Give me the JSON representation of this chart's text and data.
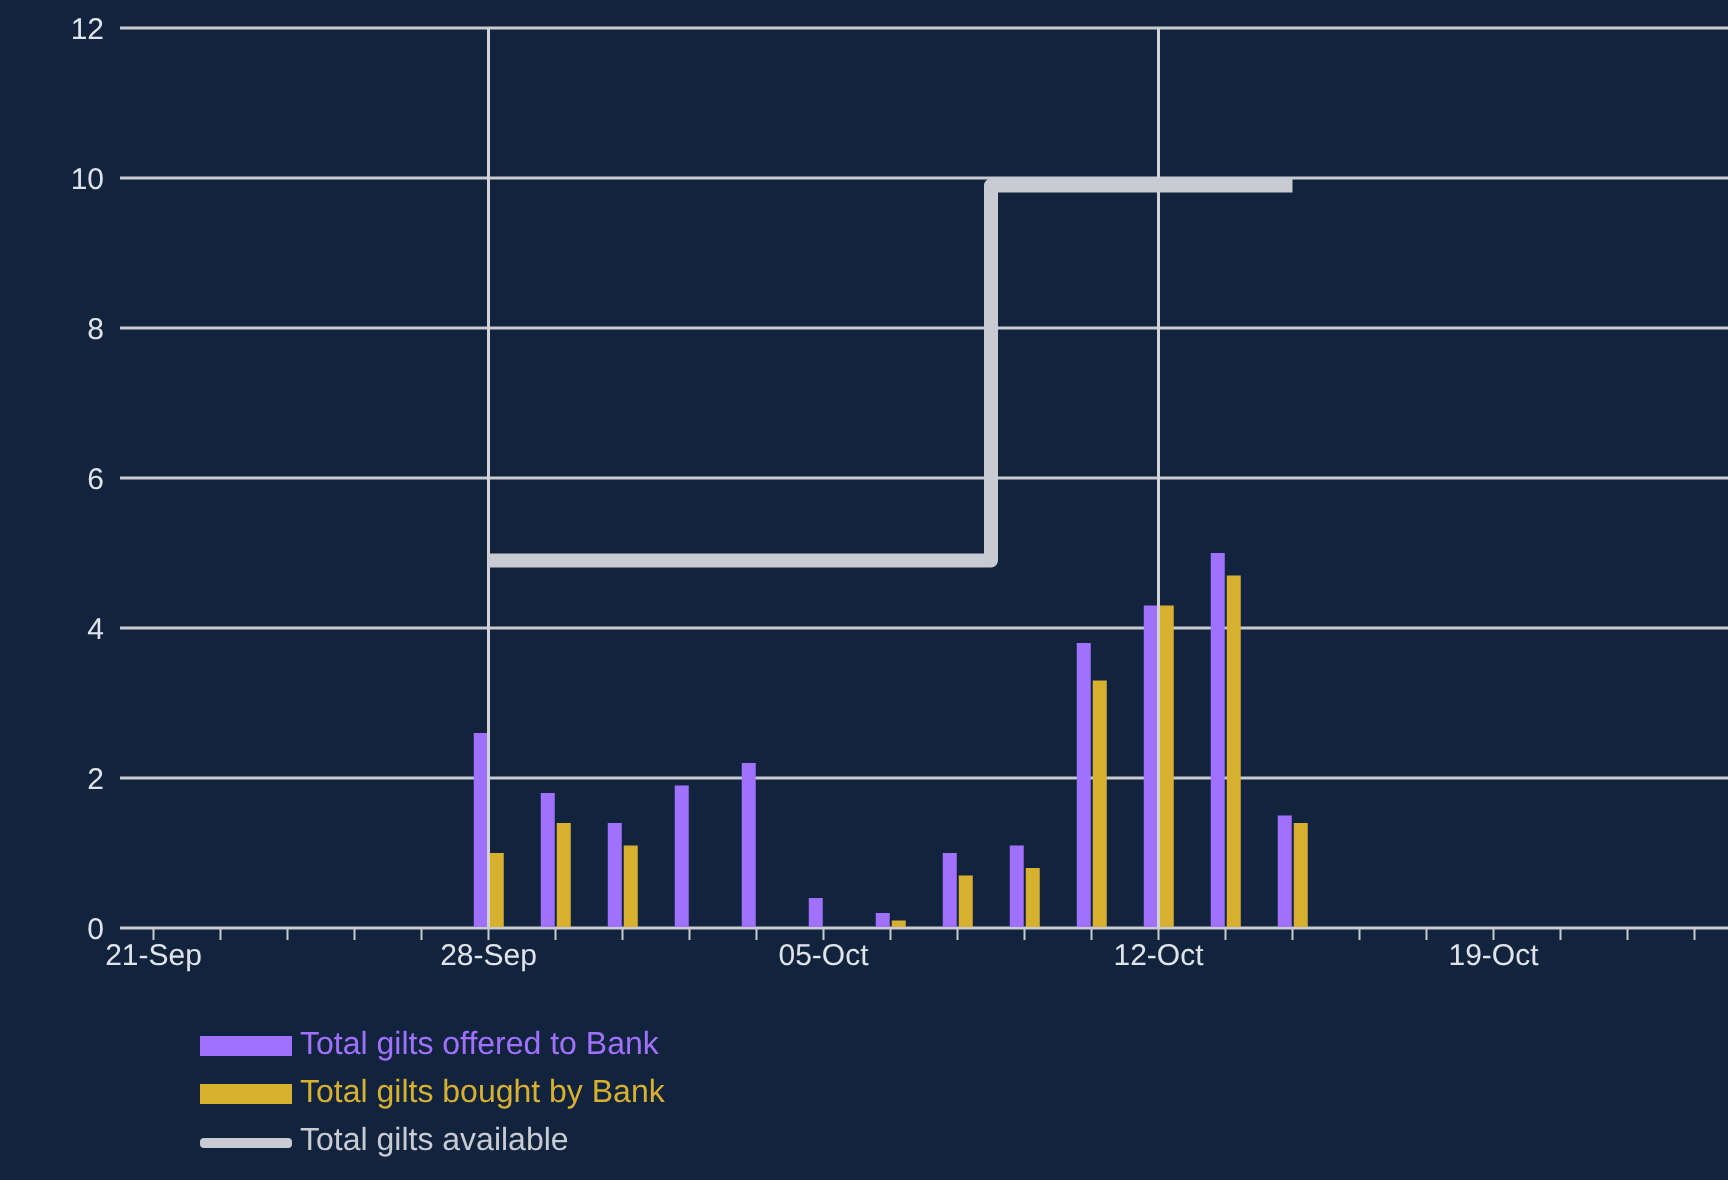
{
  "chart_data": {
    "type": "bar",
    "categories": [
      "21-Sep",
      null,
      null,
      null,
      null,
      "28-Sep",
      null,
      null,
      null,
      null,
      "05-Oct",
      null,
      null,
      null,
      null,
      "12-Oct",
      null,
      null,
      null,
      null,
      "19-Oct",
      null,
      null,
      null
    ],
    "series": [
      {
        "name": "Total gilts offered to Bank",
        "color": "#a070ff",
        "values": [
          null,
          null,
          null,
          null,
          null,
          2.6,
          1.8,
          1.4,
          1.9,
          2.2,
          0.4,
          0.2,
          1.0,
          1.1,
          3.8,
          4.3,
          5.0,
          1.5,
          null,
          null,
          null,
          null,
          null,
          null
        ]
      },
      {
        "name": "Total gilts bought by Bank",
        "color": "#d8b030",
        "values": [
          null,
          null,
          null,
          null,
          null,
          1.0,
          1.4,
          1.1,
          null,
          null,
          null,
          0.1,
          0.7,
          0.8,
          3.3,
          4.3,
          4.7,
          1.4,
          null,
          null,
          null,
          null,
          null,
          null
        ]
      },
      {
        "name": "Total gilts available",
        "type": "step",
        "color": "#c8ccd2",
        "values": [
          null,
          null,
          null,
          null,
          null,
          4.9,
          4.9,
          4.9,
          4.9,
          4.9,
          4.9,
          4.9,
          4.9,
          9.9,
          9.9,
          9.9,
          9.9,
          9.9,
          null,
          null,
          null,
          null,
          null,
          null
        ]
      }
    ],
    "ylim": [
      0,
      12
    ],
    "yticks": [
      0,
      2,
      4,
      6,
      8,
      10,
      12
    ],
    "grid": "y",
    "legend": "bottom",
    "ref_lines": [
      {
        "axis": "x",
        "value": "28-Sep",
        "color": "#d0d4da"
      },
      {
        "axis": "x",
        "value": "12-Oct",
        "color": "#d0d4da"
      }
    ]
  }
}
